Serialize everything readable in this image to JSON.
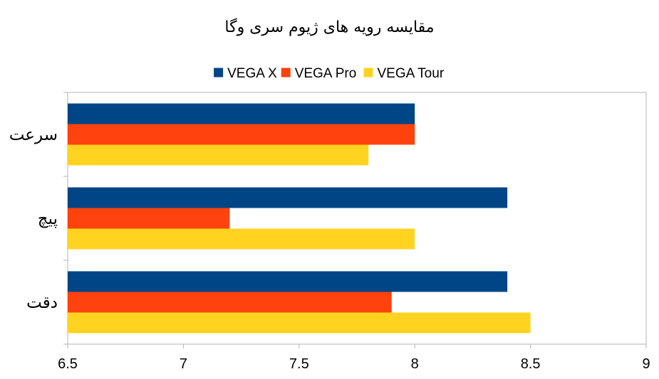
{
  "chart_data": {
    "type": "bar",
    "orientation": "horizontal",
    "title": "مقایسه رویه های ژیوم سری وگا",
    "categories": [
      "سرعت",
      "پیچ",
      "دقت"
    ],
    "series": [
      {
        "name": "VEGA X",
        "color": "#004586",
        "values": [
          8.0,
          8.4,
          8.4
        ]
      },
      {
        "name": "VEGA Pro",
        "color": "#ff420e",
        "values": [
          8.0,
          7.2,
          7.9
        ]
      },
      {
        "name": "VEGA Tour",
        "color": "#ffd320",
        "values": [
          7.8,
          8.0,
          8.5
        ]
      }
    ],
    "xlim": [
      6.5,
      9
    ],
    "xticks": [
      "6.5",
      "7",
      "7.5",
      "8",
      "8.5",
      "9"
    ],
    "legend_position": "top",
    "grid": false
  }
}
